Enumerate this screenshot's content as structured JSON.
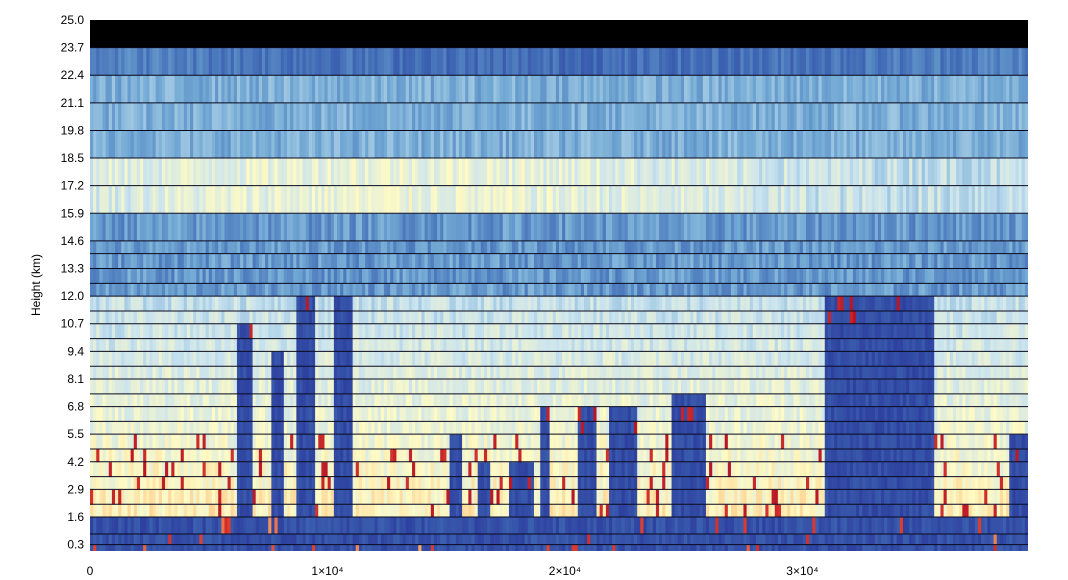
{
  "chart_data": {
    "type": "heatmap",
    "title": "",
    "ylabel": "Height (km)",
    "xlabel": "",
    "xlim": [
      0,
      39500
    ],
    "ylim": [
      0,
      25.0
    ],
    "x_ticks": [
      {
        "value": 0,
        "label": "0"
      },
      {
        "value": 10000,
        "label": "1×10⁴"
      },
      {
        "value": 20000,
        "label": "2×10⁴"
      },
      {
        "value": 30000,
        "label": "3×10⁴"
      }
    ],
    "y_ticks": [
      {
        "value": 25.0,
        "label": "25.0"
      },
      {
        "value": 23.7,
        "label": "23.7"
      },
      {
        "value": 22.4,
        "label": "22.4"
      },
      {
        "value": 21.1,
        "label": "21.1"
      },
      {
        "value": 19.8,
        "label": "19.8"
      },
      {
        "value": 18.5,
        "label": "18.5"
      },
      {
        "value": 17.2,
        "label": "17.2"
      },
      {
        "value": 15.9,
        "label": "15.9"
      },
      {
        "value": 14.6,
        "label": "14.6"
      },
      {
        "value": 13.3,
        "label": "13.3"
      },
      {
        "value": 12.0,
        "label": "12.0"
      },
      {
        "value": 10.7,
        "label": "10.7"
      },
      {
        "value": 9.4,
        "label": "9.4"
      },
      {
        "value": 8.1,
        "label": "8.1"
      },
      {
        "value": 6.8,
        "label": "6.8"
      },
      {
        "value": 5.5,
        "label": "5.5"
      },
      {
        "value": 4.2,
        "label": "4.2"
      },
      {
        "value": 2.9,
        "label": "2.9"
      },
      {
        "value": 1.6,
        "label": "1.6"
      },
      {
        "value": 0.3,
        "label": "0.3"
      }
    ],
    "layer_boundaries_km": [
      0,
      0.3,
      0.8,
      1.6,
      2.2,
      2.9,
      3.5,
      4.2,
      4.8,
      5.5,
      6.1,
      6.8,
      7.4,
      8.1,
      8.7,
      9.4,
      10.0,
      10.7,
      11.3,
      12.0,
      12.6,
      13.3,
      14.0,
      14.6,
      15.9,
      17.2,
      18.5,
      19.8,
      21.1,
      22.4,
      23.7,
      25.0
    ],
    "colormap": [
      "#2b3a9c",
      "#3f68b4",
      "#72a9d4",
      "#c9e3ef",
      "#fffbc4",
      "#fcb26b",
      "#e0412e",
      "#b71428"
    ],
    "top_band_color": "#000000",
    "cloud_columns": [
      {
        "x": [
          6200,
          6900
        ],
        "top_km": 10.7
      },
      {
        "x": [
          7700,
          8200
        ],
        "top_km": 9.4
      },
      {
        "x": [
          8700,
          9500
        ],
        "top_km": 12.0
      },
      {
        "x": [
          10300,
          11100
        ],
        "top_km": 13.3
      },
      {
        "x": [
          15200,
          15700
        ],
        "top_km": 5.5
      },
      {
        "x": [
          16300,
          16800
        ],
        "top_km": 4.2
      },
      {
        "x": [
          17600,
          18700
        ],
        "top_km": 4.2
      },
      {
        "x": [
          18900,
          19400
        ],
        "top_km": 6.8
      },
      {
        "x": [
          20500,
          21300
        ],
        "top_km": 6.8
      },
      {
        "x": [
          21900,
          23000
        ],
        "top_km": 6.8
      },
      {
        "x": [
          24500,
          25900
        ],
        "top_km": 7.4
      },
      {
        "x": [
          31000,
          35500
        ],
        "top_km": 12.0
      },
      {
        "x": [
          34500,
          35300
        ],
        "top_km": 13.3
      },
      {
        "x": [
          38700,
          39500
        ],
        "top_km": 5.5
      }
    ],
    "grid": false,
    "legend": "none"
  }
}
